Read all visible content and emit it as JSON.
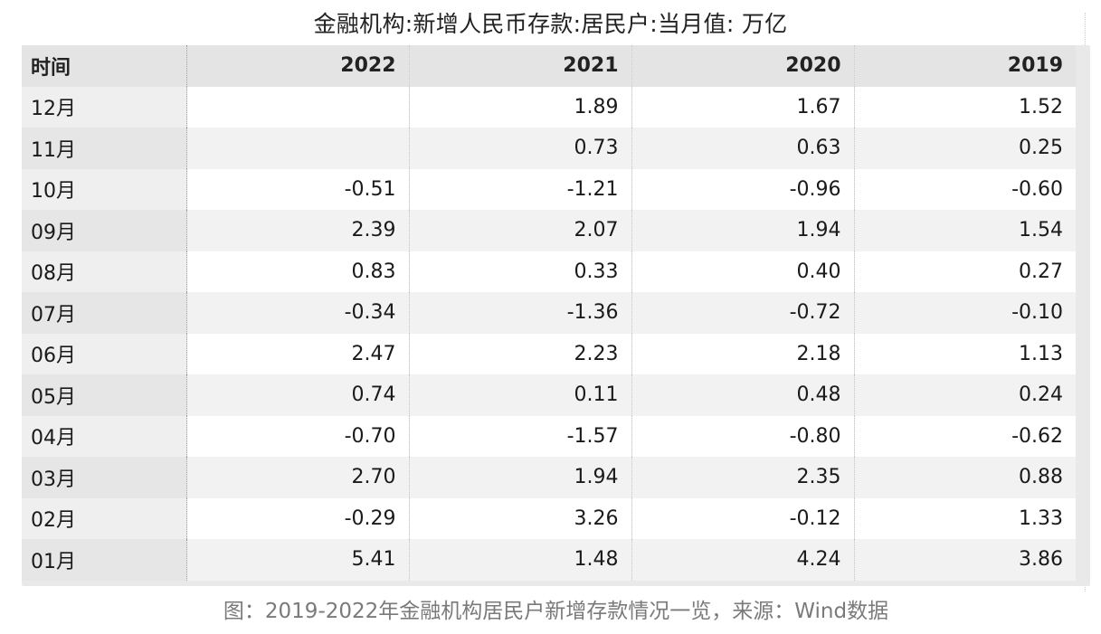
{
  "title": "金融机构:新增人民币存款:居民户:当月值: 万亿",
  "caption": "图：2019-2022年金融机构居民户新增存款情况一览，来源：Wind数据",
  "chart_data": {
    "type": "table",
    "title": "金融机构:新增人民币存款:居民户:当月值: 万亿",
    "columns": [
      "时间",
      "2022",
      "2021",
      "2020",
      "2019"
    ],
    "rows": [
      [
        "12月",
        "",
        "1.89",
        "1.67",
        "1.52"
      ],
      [
        "11月",
        "",
        "0.73",
        "0.63",
        "0.25"
      ],
      [
        "10月",
        "-0.51",
        "-1.21",
        "-0.96",
        "-0.60"
      ],
      [
        "09月",
        "2.39",
        "2.07",
        "1.94",
        "1.54"
      ],
      [
        "08月",
        "0.83",
        "0.33",
        "0.40",
        "0.27"
      ],
      [
        "07月",
        "-0.34",
        "-1.36",
        "-0.72",
        "-0.10"
      ],
      [
        "06月",
        "2.47",
        "2.23",
        "2.18",
        "1.13"
      ],
      [
        "05月",
        "0.74",
        "0.11",
        "0.48",
        "0.24"
      ],
      [
        "04月",
        "-0.70",
        "-1.57",
        "-0.80",
        "-0.62"
      ],
      [
        "03月",
        "2.70",
        "1.94",
        "2.35",
        "0.88"
      ],
      [
        "02月",
        "-0.29",
        "3.26",
        "-0.12",
        "1.33"
      ],
      [
        "01月",
        "5.41",
        "1.48",
        "4.24",
        "3.86"
      ]
    ]
  },
  "colors": {
    "header_bg": "#e4e4e4",
    "row_odd_bg": "#ffffff",
    "row_even_bg": "#f2f2f2",
    "caption_text": "#7a7a7a"
  }
}
